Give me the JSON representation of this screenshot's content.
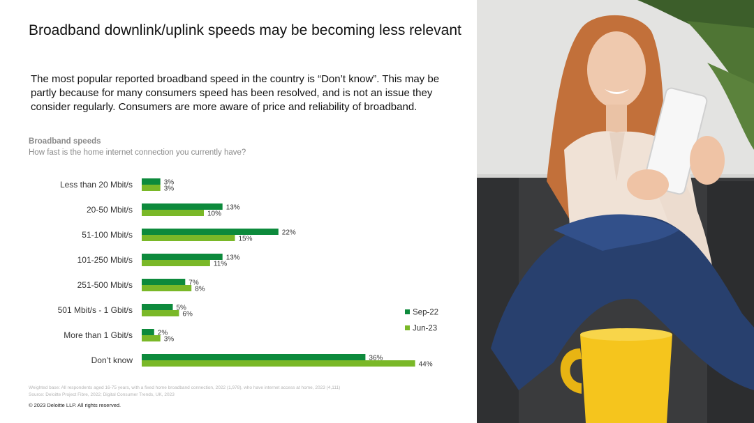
{
  "slide": {
    "title": "Broadband downlink/uplink speeds may be becoming less relevant",
    "intro": "The most popular reported broadband speed in the country is “Don’t know”. This may be partly because for many consumers speed has been resolved, and is not an issue they consider regularly. Consumers are more aware of price and reliability of broadband."
  },
  "chart_heading": "Broadband speeds",
  "chart_question": "How fast is the home internet connection you currently have?",
  "chart_data": {
    "type": "bar",
    "orientation": "horizontal",
    "categories": [
      "Less than 20 Mbit/s",
      "20-50 Mbit/s",
      "51-100 Mbit/s",
      "101-250 Mbit/s",
      "251-500 Mbit/s",
      "501 Mbit/s - 1 Gbit/s",
      "More than 1 Gbit/s",
      "Don’t know"
    ],
    "series": [
      {
        "name": "Sep-22",
        "color": "#0d8a3c",
        "values": [
          3,
          13,
          22,
          13,
          7,
          5,
          2,
          36
        ],
        "labels": [
          "3%",
          "13%",
          "22%",
          "13%",
          "7%",
          "5%",
          "2%",
          "36%"
        ]
      },
      {
        "name": "Jun-23",
        "color": "#7ab828",
        "values": [
          3,
          10,
          15,
          11,
          8,
          6,
          3,
          44
        ],
        "labels": [
          "3%",
          "10%",
          "15%",
          "11%",
          "8%",
          "6%",
          "3%",
          "44%"
        ]
      }
    ],
    "unit": "%",
    "legend_position": "right",
    "grid": false
  },
  "footnotes": [
    "Weighted base: All respondents aged 16-75 years, with a fixed home broadband connection, 2022 (1,978), who have internet access at home, 2023 (4,111)",
    "Source: Deloitte Project Fibre, 2022; Digital Consumer Trends, UK, 2023"
  ],
  "copyright": "© 2023 Deloitte LLP. All rights reserved.",
  "colors": {
    "sep22": "#0d8a3c",
    "jun23": "#7ab828"
  }
}
